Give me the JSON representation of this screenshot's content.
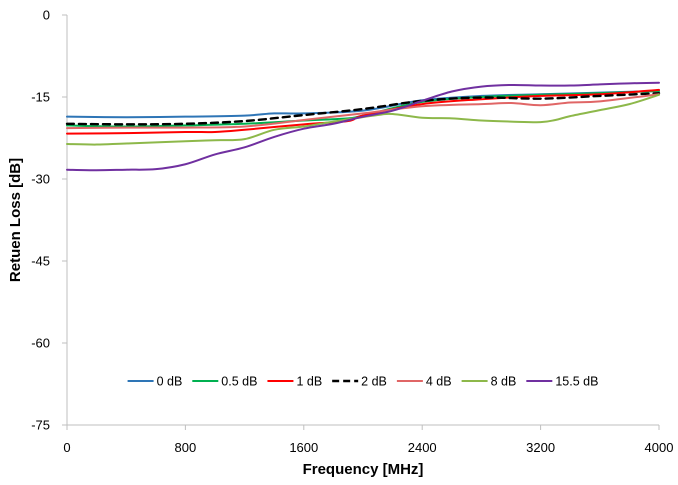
{
  "chart_data": {
    "type": "line",
    "title": "",
    "xlabel": "Frequency [MHz]",
    "ylabel": "Retuen Loss [dB]",
    "xlim": [
      0,
      4000
    ],
    "ylim": [
      -75,
      0
    ],
    "xticks": [
      0,
      800,
      1600,
      2400,
      3200,
      4000
    ],
    "yticks": [
      0,
      -15,
      -30,
      -45,
      -60,
      -75
    ],
    "grid": false,
    "legend_position": "bottom, inside plot",
    "series": [
      {
        "name": "0 dB",
        "color": "#2E75B6",
        "dashed": false,
        "points": [
          [
            0,
            -18.6
          ],
          [
            400,
            -18.7
          ],
          [
            800,
            -18.6
          ],
          [
            1200,
            -18.4
          ],
          [
            1400,
            -18.0
          ],
          [
            1600,
            -18.0
          ],
          [
            2000,
            -17.5
          ],
          [
            2400,
            -15.6
          ],
          [
            2800,
            -14.8
          ],
          [
            3200,
            -14.5
          ],
          [
            3600,
            -14.2
          ],
          [
            4000,
            -13.9
          ]
        ]
      },
      {
        "name": "0.5 dB",
        "color": "#00B050",
        "dashed": false,
        "points": [
          [
            0,
            -20.2
          ],
          [
            400,
            -20.4
          ],
          [
            800,
            -20.2
          ],
          [
            1200,
            -19.9
          ],
          [
            1600,
            -19.3
          ],
          [
            1900,
            -18.9
          ],
          [
            2000,
            -18.4
          ],
          [
            2400,
            -15.9
          ],
          [
            2800,
            -15.0
          ],
          [
            3200,
            -14.6
          ],
          [
            3600,
            -14.3
          ],
          [
            4000,
            -13.9
          ]
        ]
      },
      {
        "name": "1 dB",
        "color": "#FF0000",
        "dashed": false,
        "points": [
          [
            0,
            -21.7
          ],
          [
            400,
            -21.6
          ],
          [
            800,
            -21.4
          ],
          [
            1000,
            -21.4
          ],
          [
            1200,
            -21.0
          ],
          [
            1600,
            -20.0
          ],
          [
            1900,
            -19.4
          ],
          [
            2000,
            -18.4
          ],
          [
            2400,
            -16.3
          ],
          [
            2800,
            -15.4
          ],
          [
            3200,
            -14.8
          ],
          [
            3600,
            -14.5
          ],
          [
            4000,
            -13.7
          ]
        ]
      },
      {
        "name": "2 dB",
        "color": "#000000",
        "dashed": true,
        "points": [
          [
            0,
            -19.9
          ],
          [
            400,
            -20.0
          ],
          [
            800,
            -19.9
          ],
          [
            1200,
            -19.4
          ],
          [
            1600,
            -18.3
          ],
          [
            2000,
            -17.2
          ],
          [
            2400,
            -15.7
          ],
          [
            2800,
            -15.1
          ],
          [
            3200,
            -15.3
          ],
          [
            3600,
            -14.8
          ],
          [
            4000,
            -14.3
          ]
        ]
      },
      {
        "name": "4 dB",
        "color": "#E06666",
        "dashed": false,
        "points": [
          [
            0,
            -20.7
          ],
          [
            400,
            -20.6
          ],
          [
            800,
            -20.6
          ],
          [
            1200,
            -20.4
          ],
          [
            1600,
            -19.2
          ],
          [
            2000,
            -18.0
          ],
          [
            2400,
            -16.7
          ],
          [
            2800,
            -16.3
          ],
          [
            3000,
            -16.1
          ],
          [
            3200,
            -16.5
          ],
          [
            3400,
            -16.0
          ],
          [
            3600,
            -15.8
          ],
          [
            4000,
            -14.5
          ]
        ]
      },
      {
        "name": "8 dB",
        "color": "#8DB84A",
        "dashed": false,
        "points": [
          [
            0,
            -23.6
          ],
          [
            200,
            -23.7
          ],
          [
            400,
            -23.5
          ],
          [
            800,
            -23.1
          ],
          [
            1000,
            -22.9
          ],
          [
            1200,
            -22.7
          ],
          [
            1400,
            -21.0
          ],
          [
            1600,
            -20.4
          ],
          [
            1800,
            -19.5
          ],
          [
            2100,
            -18.3
          ],
          [
            2200,
            -18.1
          ],
          [
            2400,
            -18.8
          ],
          [
            2600,
            -18.9
          ],
          [
            2800,
            -19.3
          ],
          [
            3000,
            -19.5
          ],
          [
            3200,
            -19.6
          ],
          [
            3300,
            -19.2
          ],
          [
            3400,
            -18.5
          ],
          [
            3600,
            -17.4
          ],
          [
            3800,
            -16.3
          ],
          [
            4000,
            -14.6
          ]
        ]
      },
      {
        "name": "15.5 dB",
        "color": "#7030A0",
        "dashed": false,
        "points": [
          [
            0,
            -28.3
          ],
          [
            200,
            -28.4
          ],
          [
            400,
            -28.3
          ],
          [
            600,
            -28.2
          ],
          [
            800,
            -27.3
          ],
          [
            1000,
            -25.5
          ],
          [
            1200,
            -24.2
          ],
          [
            1400,
            -22.3
          ],
          [
            1600,
            -20.8
          ],
          [
            1800,
            -19.9
          ],
          [
            2000,
            -18.6
          ],
          [
            2200,
            -17.5
          ],
          [
            2400,
            -15.7
          ],
          [
            2600,
            -14.0
          ],
          [
            2800,
            -13.1
          ],
          [
            3000,
            -12.8
          ],
          [
            3200,
            -12.9
          ],
          [
            3400,
            -12.9
          ],
          [
            3600,
            -12.7
          ],
          [
            3800,
            -12.5
          ],
          [
            4000,
            -12.4
          ]
        ]
      }
    ]
  }
}
